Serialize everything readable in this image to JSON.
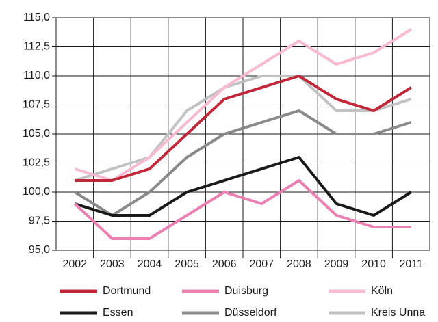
{
  "chart_data": {
    "type": "line",
    "categories": [
      "2002",
      "2003",
      "2004",
      "2005",
      "2006",
      "2007",
      "2008",
      "2009",
      "2010",
      "2011"
    ],
    "series": [
      {
        "name": "Dortmund",
        "color": "#c0283a",
        "values": [
          101,
          101,
          102,
          105,
          108,
          109,
          110,
          108,
          107,
          109
        ]
      },
      {
        "name": "Duisburg",
        "color": "#eb80b2",
        "values": [
          99,
          96,
          96,
          98,
          100,
          99,
          101,
          98,
          97,
          97
        ]
      },
      {
        "name": "Köln",
        "color": "#f7bad2",
        "values": [
          102,
          101,
          103,
          106,
          109,
          111,
          113,
          111,
          112,
          114
        ]
      },
      {
        "name": "Essen",
        "color": "#1a1a1a",
        "values": [
          99,
          98,
          98,
          100,
          101,
          102,
          103,
          99,
          98,
          100
        ]
      },
      {
        "name": "Düsseldorf",
        "color": "#8a8a8d",
        "values": [
          100,
          98,
          100,
          103,
          105,
          106,
          107,
          105,
          105,
          106
        ]
      },
      {
        "name": "Kreis Unna",
        "color": "#c2c2c4",
        "values": [
          101,
          102,
          103,
          107,
          109,
          110,
          110,
          107,
          107,
          108
        ]
      }
    ],
    "ylim": [
      95,
      115
    ],
    "yticks": [
      {
        "value": 95,
        "label": "95,0"
      },
      {
        "value": 97.5,
        "label": "97,5"
      },
      {
        "value": 100,
        "label": "100,0"
      },
      {
        "value": 102.5,
        "label": "102,5"
      },
      {
        "value": 105,
        "label": "105,0"
      },
      {
        "value": 107.5,
        "label": "107,5"
      },
      {
        "value": 110,
        "label": "110,0"
      },
      {
        "value": 112.5,
        "label": "112,5"
      },
      {
        "value": 115,
        "label": "115,0"
      }
    ],
    "grid": true
  }
}
